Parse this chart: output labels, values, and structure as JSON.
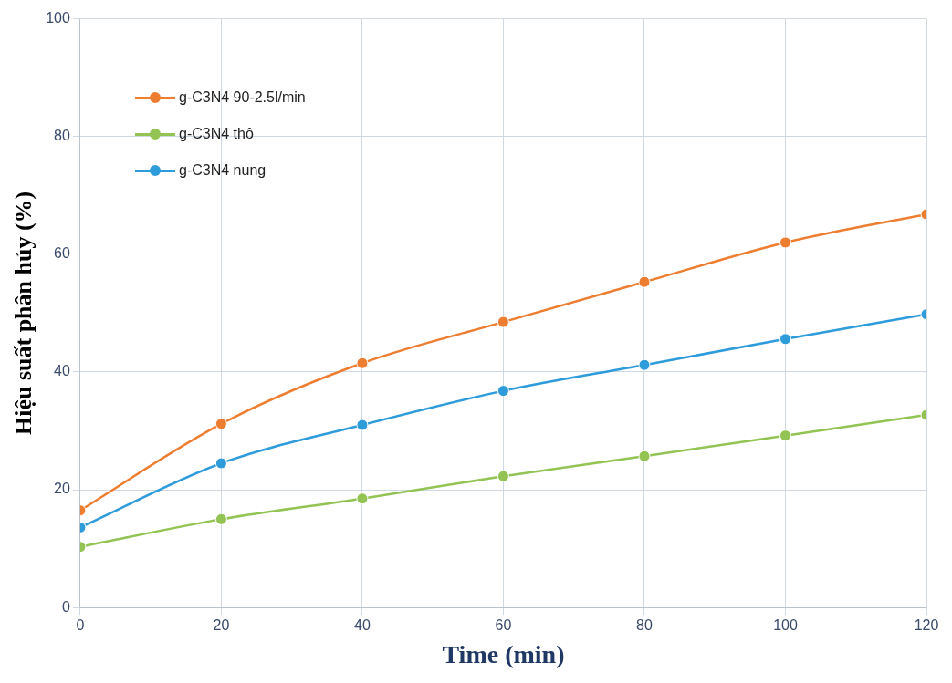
{
  "chart_data": {
    "type": "line",
    "xlabel": "Time (min)",
    "ylabel": "Hiệu suất phân hủy (%)",
    "x": [
      0,
      20,
      40,
      60,
      80,
      100,
      120
    ],
    "series": [
      {
        "name": "g-C3N4 90-2.5l/min",
        "color": "#ed7d31",
        "values": [
          16.5,
          31.2,
          41.5,
          48.5,
          55.3,
          62,
          66.8
        ]
      },
      {
        "name": "g-C3N4 thô",
        "color": "#92c353",
        "values": [
          10.3,
          15,
          18.5,
          22.3,
          25.7,
          29.2,
          32.7
        ]
      },
      {
        "name": "g-C3N4 nung",
        "color": "#2e9bdb",
        "values": [
          13.6,
          24.5,
          31,
          36.8,
          41.2,
          45.6,
          49.8
        ]
      }
    ],
    "xlim": [
      0,
      120
    ],
    "xticks": [
      0,
      20,
      40,
      60,
      80,
      100,
      120
    ],
    "ylim": [
      0,
      100
    ],
    "yticks": [
      0,
      20,
      40,
      60,
      80,
      100
    ],
    "grid": true,
    "legend": "top left",
    "marker": "circle",
    "line_style": "solid"
  }
}
